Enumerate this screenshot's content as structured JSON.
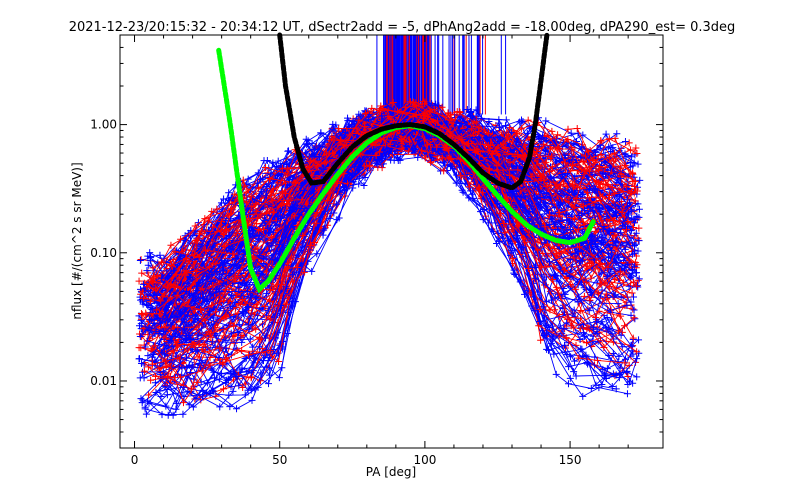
{
  "chart_data": {
    "type": "line",
    "title": "2021-12-23/20:15:32 - 20:34:12 UT, dSectr2add = -5, dPhAng2add = -18.00deg, dPA290_est=   0.3deg",
    "xlabel": "PA [deg]",
    "ylabel": "nflux [#/(cm^2 s sr MeV)]",
    "xlim": [
      -5,
      182
    ],
    "ylim": [
      0.003,
      5.0
    ],
    "y_scale": "log",
    "x_ticks": [
      0,
      50,
      100,
      150
    ],
    "x_tick_labels": [
      "0",
      "50",
      "100",
      "150"
    ],
    "y_ticks": [
      0.01,
      0.1,
      1.0
    ],
    "y_tick_labels": [
      "0.01",
      "0.10",
      "1.00"
    ],
    "grid": false,
    "colors": {
      "red": "#ff0000",
      "blue": "#0000ff",
      "green": "#00ff00",
      "black": "#000000"
    },
    "series": [
      {
        "color": "green",
        "style": "thick-dotted",
        "x": [
          29,
          33,
          37,
          40,
          43,
          46,
          50,
          55,
          60,
          65,
          70,
          75,
          80,
          85,
          90,
          95,
          100,
          105,
          110,
          115,
          120,
          125,
          130,
          135,
          140,
          145,
          150,
          155,
          158
        ],
        "y": [
          3.8,
          1.0,
          0.22,
          0.075,
          0.052,
          0.06,
          0.082,
          0.13,
          0.2,
          0.29,
          0.41,
          0.56,
          0.72,
          0.86,
          0.95,
          0.98,
          0.93,
          0.82,
          0.68,
          0.52,
          0.38,
          0.28,
          0.21,
          0.165,
          0.14,
          0.125,
          0.12,
          0.13,
          0.175
        ]
      },
      {
        "color": "black",
        "style": "thick-dotted",
        "x": [
          50,
          52,
          55,
          58,
          61,
          65,
          70,
          75,
          80,
          85,
          90,
          95,
          100,
          105,
          110,
          115,
          120,
          125,
          130,
          133,
          136,
          138,
          140,
          142
        ],
        "y": [
          5.0,
          2.0,
          0.8,
          0.45,
          0.35,
          0.36,
          0.5,
          0.67,
          0.82,
          0.92,
          0.98,
          1.0,
          0.96,
          0.85,
          0.7,
          0.55,
          0.42,
          0.35,
          0.32,
          0.36,
          0.55,
          1.0,
          2.2,
          5.0
        ]
      }
    ],
    "envelope": {
      "x": [
        10,
        20,
        30,
        40,
        50,
        60,
        70,
        80,
        90,
        95,
        100,
        110,
        120,
        130,
        140,
        150,
        160,
        170
      ],
      "y_hi": [
        0.07,
        0.12,
        0.19,
        0.32,
        0.42,
        0.55,
        0.76,
        0.95,
        1.05,
        1.06,
        1.05,
        0.96,
        0.85,
        0.82,
        0.76,
        0.71,
        0.66,
        0.55
      ],
      "y_lo": [
        0.004,
        0.004,
        0.004,
        0.004,
        0.005,
        0.05,
        0.2,
        0.45,
        0.7,
        0.75,
        0.7,
        0.45,
        0.18,
        0.05,
        0.008,
        0.005,
        0.004,
        0.004
      ]
    },
    "noisy_spread": {
      "red_curves": 85,
      "blue_curves": 115
    },
    "vertical_lines": {
      "x_range": [
        82,
        128
      ],
      "dense_range": [
        86,
        102
      ],
      "count": 160,
      "y_top": 5.0,
      "y_bottom": 1.2
    }
  }
}
